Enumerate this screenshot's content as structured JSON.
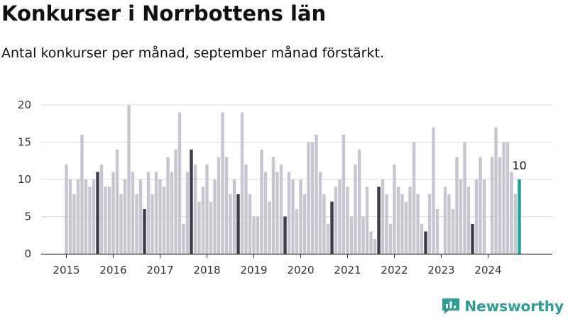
{
  "title": "Konkurser i Norrbottens län",
  "subtitle": "Antal konkurser per månad, september månad förstärkt.",
  "brand": "Newsworthy",
  "colors": {
    "normal": "#c8c6d1",
    "highlight": "#3d3c4a",
    "latest": "#1aa199",
    "brand": "#2e9d93"
  },
  "chart_data": {
    "type": "bar",
    "title": "Konkurser i Norrbottens län",
    "subtitle": "Antal konkurser per månad, september månad förstärkt.",
    "xlabel": "",
    "ylabel": "",
    "ylim": [
      0,
      20
    ],
    "yticks": [
      0,
      5,
      10,
      15,
      20
    ],
    "grid": true,
    "year_ticks": [
      "2015",
      "2016",
      "2017",
      "2018",
      "2019",
      "2020",
      "2021",
      "2022",
      "2023",
      "2024"
    ],
    "start": "2015-01",
    "highlight_month": "september",
    "latest_label": "10",
    "values": [
      12,
      10,
      8,
      10,
      16,
      10,
      9,
      10,
      11,
      12,
      9,
      9,
      11,
      14,
      8,
      10,
      20,
      11,
      8,
      10,
      6,
      11,
      8,
      11,
      10,
      9,
      13,
      11,
      14,
      19,
      4,
      11,
      14,
      12,
      7,
      9,
      12,
      7,
      10,
      13,
      19,
      13,
      8,
      10,
      8,
      19,
      12,
      8,
      5,
      5,
      14,
      11,
      7,
      13,
      11,
      12,
      5,
      11,
      10,
      6,
      10,
      8,
      15,
      15,
      16,
      11,
      8,
      4,
      7,
      9,
      10,
      16,
      9,
      5,
      12,
      14,
      5,
      9,
      3,
      2,
      9,
      10,
      8,
      4,
      12,
      9,
      8,
      7,
      9,
      15,
      8,
      4,
      3,
      8,
      17,
      6,
      0,
      9,
      8,
      6,
      13,
      10,
      15,
      9,
      4,
      10,
      13,
      10,
      0,
      13,
      17,
      13,
      15,
      15,
      11,
      8,
      10
    ]
  }
}
